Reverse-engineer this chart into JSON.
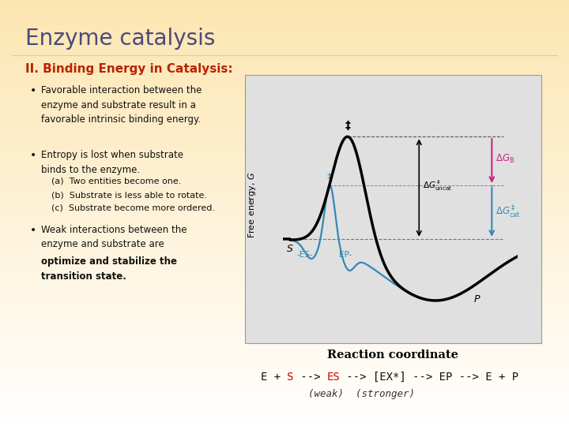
{
  "title": "Enzyme catalysis",
  "subtitle": "II. Binding Energy in Catalysis:",
  "bullet1": "Favorable interaction between the\nenzyme and substrate result in a\nfavorable intrinsic binding energy.",
  "bullet2": "Entropy is lost when substrate\nbinds to the enzyme.",
  "bullet2_a": "(a)  Two entities become one.",
  "bullet2_b": "(b)  Substrate is less able to rotate.",
  "bullet2_c": "(c)  Substrate become more ordered.",
  "bullet3_normal": "Weak interactions between the\nenzyme and substrate are\n",
  "bullet3_bold": "optimize and stabilize the\ntransition state.",
  "eq_black1": "E + ",
  "eq_red1": "S",
  "eq_black2": " --> ",
  "eq_red2": "ES",
  "eq_black3": " --> [EX*] --> EP --> E + P",
  "weak_text": "(weak)  (stronger)",
  "bg_top": "#fce5b0",
  "bg_bottom": "#ffffff",
  "title_color": "#4a4a7a",
  "subtitle_color": "#bb2200",
  "text_color": "#111111",
  "diagram_bg": "#e0e0e0",
  "red_color": "#cc0000",
  "blue_color": "#3388bb",
  "pink_color": "#cc2288",
  "arrow_black": "#111111"
}
